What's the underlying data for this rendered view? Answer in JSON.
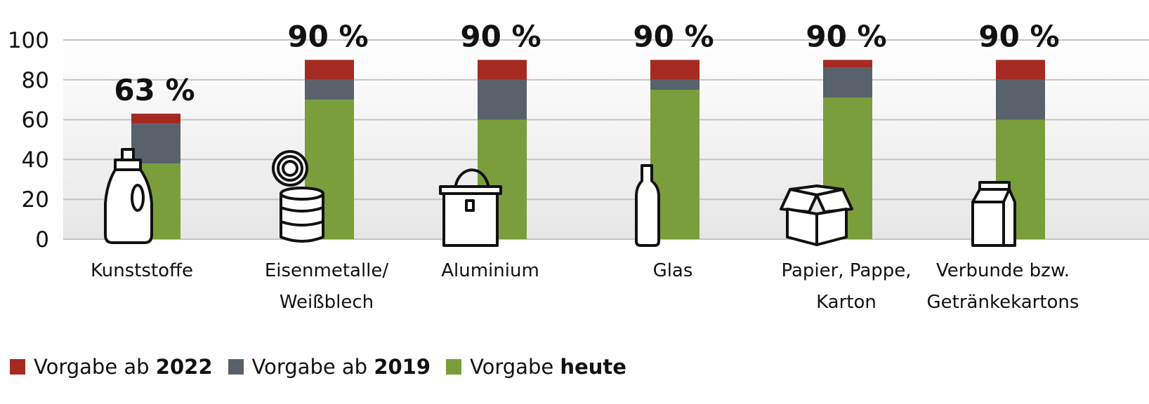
{
  "chart_data": {
    "type": "bar",
    "stacked": true,
    "categories": [
      [
        "Kunststoffe"
      ],
      [
        "Eisenmetalle/",
        "Weißblech"
      ],
      [
        "Aluminium"
      ],
      [
        "Glas"
      ],
      [
        "Papier, Pappe,",
        "Karton"
      ],
      [
        "Verbunde bzw.",
        "Getränkekartons"
      ]
    ],
    "category_icons": [
      "detergent-bottle-icon",
      "tin-can-icon",
      "paint-bucket-icon",
      "glass-bottle-icon",
      "cardboard-box-icon",
      "beverage-carton-icon"
    ],
    "series": [
      {
        "name": "Vorgabe heute",
        "color": "#7a9e3c",
        "values": [
          38,
          70,
          60,
          75,
          71,
          60
        ]
      },
      {
        "name": "Vorgabe ab 2019",
        "color": "#59626b",
        "values": [
          20,
          10,
          20,
          5,
          15,
          20
        ]
      },
      {
        "name": "Vorgabe ab 2022",
        "color": "#a52a22",
        "values": [
          5,
          10,
          10,
          10,
          4,
          10
        ]
      }
    ],
    "totals_labels": [
      "63 %",
      "90 %",
      "90 %",
      "90 %",
      "90 %",
      "90 %"
    ],
    "yticks": [
      "0",
      "20",
      "40",
      "60",
      "80",
      "100"
    ],
    "ylim": [
      0,
      100
    ],
    "grid": true,
    "legend_position": "bottom-left"
  },
  "legend": [
    {
      "prefix": "Vorgabe ab ",
      "bold": "2022",
      "color": "#a52a22"
    },
    {
      "prefix": "Vorgabe ab ",
      "bold": "2019",
      "color": "#59626b"
    },
    {
      "prefix": "Vorgabe ",
      "bold": "heute",
      "color": "#7a9e3c"
    }
  ]
}
